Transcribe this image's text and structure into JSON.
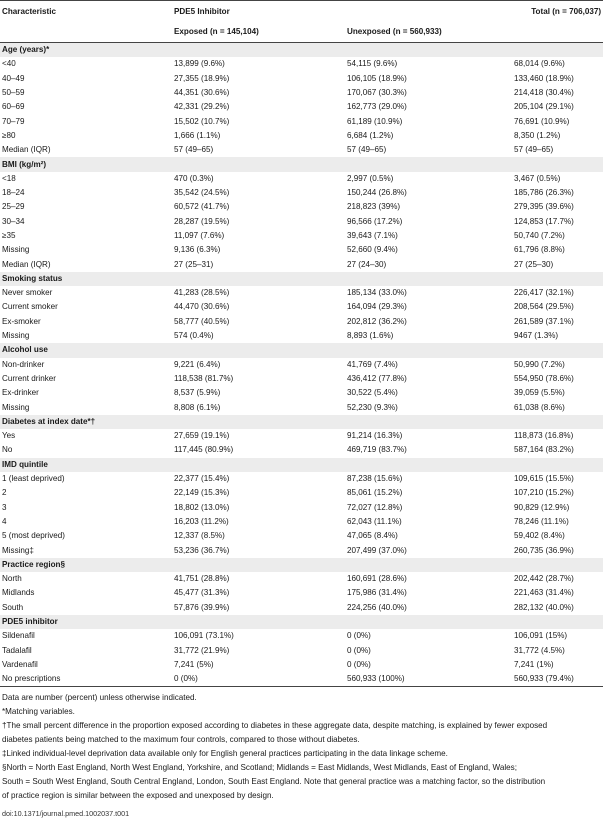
{
  "header": {
    "characteristic": "Characteristic",
    "group": "PDE5 Inhibitor",
    "total": "Total (n = 706,037)",
    "exposed": "Exposed (n = 145,104)",
    "unexposed": "Unexposed (n = 560,933)"
  },
  "sections": [
    {
      "title": "Age (years)*",
      "rows": [
        [
          "<40",
          "13,899 (9.6%)",
          "54,115 (9.6%)",
          "68,014 (9.6%)"
        ],
        [
          "40–49",
          "27,355 (18.9%)",
          "106,105 (18.9%)",
          "133,460 (18.9%)"
        ],
        [
          "50–59",
          "44,351 (30.6%)",
          "170,067 (30.3%)",
          "214,418 (30.4%)"
        ],
        [
          "60–69",
          "42,331 (29.2%)",
          "162,773 (29.0%)",
          "205,104 (29.1%)"
        ],
        [
          "70–79",
          "15,502 (10.7%)",
          "61,189 (10.9%)",
          "76,691 (10.9%)"
        ],
        [
          "≥80",
          "1,666 (1.1%)",
          "6,684 (1.2%)",
          "8,350 (1.2%)"
        ],
        [
          "Median (IQR)",
          "57 (49–65)",
          "57 (49–65)",
          "57 (49–65)"
        ]
      ]
    },
    {
      "title": "BMI (kg/m²)",
      "rows": [
        [
          "<18",
          "470 (0.3%)",
          "2,997 (0.5%)",
          "3,467 (0.5%)"
        ],
        [
          "18–24",
          "35,542 (24.5%)",
          "150,244 (26.8%)",
          "185,786 (26.3%)"
        ],
        [
          "25–29",
          "60,572 (41.7%)",
          "218,823 (39%)",
          "279,395 (39.6%)"
        ],
        [
          "30–34",
          "28,287 (19.5%)",
          "96,566 (17.2%)",
          "124,853 (17.7%)"
        ],
        [
          "≥35",
          "11,097 (7.6%)",
          "39,643 (7.1%)",
          "50,740 (7.2%)"
        ],
        [
          "Missing",
          "9,136 (6.3%)",
          "52,660 (9.4%)",
          "61,796 (8.8%)"
        ],
        [
          "Median (IQR)",
          "27 (25–31)",
          "27 (24–30)",
          "27 (25–30)"
        ]
      ]
    },
    {
      "title": "Smoking status",
      "rows": [
        [
          "Never smoker",
          "41,283 (28.5%)",
          "185,134 (33.0%)",
          "226,417 (32.1%)"
        ],
        [
          "Current smoker",
          "44,470 (30.6%)",
          "164,094 (29.3%)",
          "208,564 (29.5%)"
        ],
        [
          "Ex-smoker",
          "58,777 (40.5%)",
          "202,812 (36.2%)",
          "261,589 (37.1%)"
        ],
        [
          "Missing",
          "574 (0.4%)",
          "8,893 (1.6%)",
          "9467 (1.3%)"
        ]
      ]
    },
    {
      "title": "Alcohol use",
      "rows": [
        [
          "Non-drinker",
          "9,221 (6.4%)",
          "41,769 (7.4%)",
          "50,990 (7.2%)"
        ],
        [
          "Current drinker",
          "118,538 (81.7%)",
          "436,412 (77.8%)",
          "554,950 (78.6%)"
        ],
        [
          "Ex-drinker",
          "8,537 (5.9%)",
          "30,522 (5.4%)",
          "39,059 (5.5%)"
        ],
        [
          "Missing",
          "8,808 (6.1%)",
          "52,230 (9.3%)",
          "61,038 (8.6%)"
        ]
      ]
    },
    {
      "title": "Diabetes at index date*†",
      "rows": [
        [
          "Yes",
          "27,659 (19.1%)",
          "91,214 (16.3%)",
          "118,873 (16.8%)"
        ],
        [
          "No",
          "117,445 (80.9%)",
          "469,719 (83.7%)",
          "587,164 (83.2%)"
        ]
      ]
    },
    {
      "title": "IMD quintile",
      "rows": [
        [
          "1 (least deprived)",
          "22,377 (15.4%)",
          "87,238 (15.6%)",
          "109,615 (15.5%)"
        ],
        [
          "2",
          "22,149 (15.3%)",
          "85,061 (15.2%)",
          "107,210 (15.2%)"
        ],
        [
          "3",
          "18,802 (13.0%)",
          "72,027 (12.8%)",
          "90,829 (12.9%)"
        ],
        [
          "4",
          "16,203 (11.2%)",
          "62,043 (11.1%)",
          "78,246 (11.1%)"
        ],
        [
          "5 (most deprived)",
          "12,337 (8.5%)",
          "47,065 (8.4%)",
          "59,402 (8.4%)"
        ],
        [
          "Missing‡",
          "53,236 (36.7%)",
          "207,499 (37.0%)",
          "260,735 (36.9%)"
        ]
      ]
    },
    {
      "title": "Practice region§",
      "rows": [
        [
          "North",
          "41,751 (28.8%)",
          "160,691 (28.6%)",
          "202,442 (28.7%)"
        ],
        [
          "Midlands",
          "45,477 (31.3%)",
          "175,986 (31.4%)",
          "221,463 (31.4%)"
        ],
        [
          "South",
          "57,876 (39.9%)",
          "224,256 (40.0%)",
          "282,132 (40.0%)"
        ]
      ]
    },
    {
      "title": "PDE5 inhibitor",
      "rows": [
        [
          "Sildenafil",
          "106,091 (73.1%)",
          "0 (0%)",
          "106,091 (15%)"
        ],
        [
          "Tadalafil",
          "31,772 (21.9%)",
          "0 (0%)",
          "31,772 (4.5%)"
        ],
        [
          "Vardenafil",
          "7,241 (5%)",
          "0 (0%)",
          "7,241 (1%)"
        ],
        [
          "No prescriptions",
          "0 (0%)",
          "560,933 (100%)",
          "560,933 (79.4%)"
        ]
      ]
    }
  ],
  "notes": [
    "Data are number (percent) unless otherwise indicated.",
    "*Matching variables.",
    "†The small percent difference in the proportion exposed according to diabetes in these aggregate data, despite matching, is explained by fewer exposed",
    "diabetes patients being matched to the maximum four controls, compared to those without diabetes.",
    "‡Linked individual-level deprivation data available only for English general practices participating in the data linkage scheme.",
    "§North = North East England, North West England, Yorkshire, and Scotland; Midlands = East Midlands, West Midlands, East of England, Wales;",
    "South = South West England, South Central England, London, South East England. Note that general practice was a matching factor, so the distribution",
    "of practice region is similar between the exposed and unexposed by design."
  ],
  "doi": "doi:10.1371/journal.pmed.1002037.t001"
}
